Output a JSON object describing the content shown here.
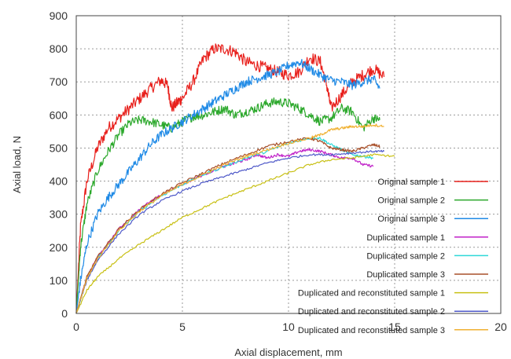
{
  "chart_data": {
    "type": "line",
    "xlabel": "Axial displacement, mm",
    "ylabel": "Axial load, N",
    "xlim": [
      0,
      20
    ],
    "ylim": [
      0,
      900
    ],
    "xticks": [
      0,
      5,
      10,
      15,
      20
    ],
    "yticks": [
      0,
      100,
      200,
      300,
      400,
      500,
      600,
      700,
      800,
      900
    ],
    "grid": true,
    "legend_position": "lower-right",
    "series": [
      {
        "name": "Original sample 1",
        "color": "#e8201c",
        "noise": 18,
        "x": [
          0,
          0.2,
          0.5,
          1,
          1.5,
          2,
          2.5,
          3,
          3.5,
          4,
          4.3,
          4.5,
          4.8,
          5,
          5.5,
          6,
          6.5,
          7,
          7.5,
          8,
          8.5,
          9,
          9.5,
          10,
          10.5,
          11,
          11.5,
          11.8,
          12,
          12.5,
          13,
          13.5,
          14,
          14.5
        ],
        "y": [
          0,
          260,
          400,
          500,
          560,
          590,
          620,
          650,
          680,
          705,
          690,
          620,
          640,
          650,
          700,
          770,
          800,
          800,
          790,
          760,
          750,
          740,
          730,
          720,
          730,
          775,
          760,
          690,
          620,
          660,
          700,
          720,
          740,
          715
        ]
      },
      {
        "name": "Original sample 2",
        "color": "#2ba82b",
        "noise": 14,
        "x": [
          0,
          0.2,
          0.5,
          1,
          1.5,
          2,
          2.5,
          3,
          3.5,
          4,
          4.5,
          5,
          5.5,
          6,
          6.5,
          7,
          7.5,
          8,
          8.5,
          9,
          9.5,
          10,
          10.5,
          11,
          11.5,
          12,
          12.5,
          13,
          13.5,
          14,
          14.3
        ],
        "y": [
          0,
          200,
          330,
          430,
          490,
          540,
          575,
          585,
          580,
          570,
          560,
          580,
          595,
          600,
          610,
          620,
          600,
          610,
          620,
          635,
          640,
          635,
          620,
          600,
          580,
          590,
          620,
          610,
          560,
          590,
          585
        ]
      },
      {
        "name": "Original sample 3",
        "color": "#1f8ae6",
        "noise": 14,
        "x": [
          0,
          0.2,
          0.5,
          1,
          1.5,
          2,
          2.5,
          3,
          3.5,
          4,
          4.5,
          5,
          5.5,
          6,
          6.5,
          7,
          7.5,
          8,
          8.5,
          9,
          9.5,
          10,
          10.5,
          11,
          11.5,
          12,
          12.5,
          13,
          13.5,
          14,
          14.3
        ],
        "y": [
          0,
          100,
          210,
          300,
          350,
          390,
          430,
          470,
          510,
          540,
          560,
          580,
          600,
          620,
          640,
          660,
          680,
          700,
          710,
          720,
          730,
          750,
          760,
          740,
          720,
          705,
          700,
          690,
          700,
          710,
          680
        ]
      },
      {
        "name": "Duplicated sample 1",
        "color": "#c020c8",
        "noise": 4,
        "x": [
          0,
          0.5,
          1,
          2,
          3,
          4,
          5,
          6,
          7,
          7.5,
          8,
          8.5,
          9,
          9.5,
          10,
          10.5,
          11,
          11.5,
          12,
          12.5,
          13,
          13.5,
          14
        ],
        "y": [
          0,
          110,
          170,
          255,
          315,
          360,
          390,
          420,
          445,
          455,
          465,
          480,
          470,
          480,
          475,
          490,
          495,
          490,
          480,
          470,
          470,
          450,
          445
        ]
      },
      {
        "name": "Duplicated sample 2",
        "color": "#2fd8d8",
        "noise": 4,
        "x": [
          0,
          0.5,
          1,
          2,
          3,
          4,
          5,
          6,
          7,
          8,
          9,
          10,
          11,
          11.5,
          12,
          12.5,
          13,
          13.5,
          14
        ],
        "y": [
          0,
          105,
          165,
          250,
          310,
          355,
          390,
          420,
          445,
          470,
          490,
          515,
          530,
          530,
          510,
          495,
          480,
          475,
          470
        ]
      },
      {
        "name": "Duplicated sample 3",
        "color": "#a8502a",
        "noise": 4,
        "x": [
          0,
          0.5,
          1,
          2,
          3,
          4,
          5,
          6,
          7,
          8,
          9,
          10,
          11,
          11.5,
          12,
          12.5,
          13,
          13.5,
          14,
          14.3
        ],
        "y": [
          0,
          110,
          170,
          255,
          315,
          360,
          395,
          425,
          455,
          480,
          505,
          520,
          530,
          520,
          500,
          495,
          490,
          500,
          510,
          505
        ]
      },
      {
        "name": "Duplicated and reconstituted sample 1",
        "color": "#c8c014",
        "noise": 3,
        "x": [
          0,
          0.5,
          1,
          2,
          3,
          4,
          5,
          6,
          7,
          8,
          9,
          10,
          11,
          12,
          13,
          14,
          15
        ],
        "y": [
          0,
          70,
          110,
          165,
          210,
          250,
          290,
          320,
          350,
          375,
          400,
          425,
          450,
          465,
          470,
          480,
          475
        ]
      },
      {
        "name": "Duplicated and reconstituted sample 2",
        "color": "#4e58c8",
        "noise": 3,
        "x": [
          0,
          0.5,
          1,
          2,
          3,
          4,
          5,
          6,
          7,
          8,
          9,
          10,
          11,
          12,
          13,
          14,
          14.5
        ],
        "y": [
          0,
          100,
          160,
          240,
          300,
          340,
          370,
          395,
          415,
          435,
          455,
          470,
          480,
          480,
          485,
          490,
          490
        ]
      },
      {
        "name": "Duplicated and reconstituted sample 3",
        "color": "#f0b030",
        "noise": 4,
        "x": [
          0,
          0.5,
          1,
          2,
          3,
          4,
          5,
          6,
          7,
          8,
          9,
          10,
          11,
          11.5,
          12,
          12.5,
          13,
          13.5,
          14,
          14.5
        ],
        "y": [
          0,
          105,
          165,
          250,
          310,
          355,
          390,
          420,
          450,
          475,
          495,
          515,
          530,
          540,
          555,
          560,
          565,
          565,
          570,
          565
        ]
      }
    ]
  }
}
